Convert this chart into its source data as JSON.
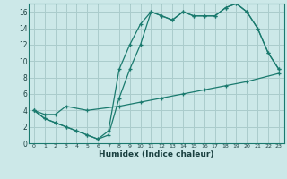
{
  "xlabel": "Humidex (Indice chaleur)",
  "ylabel": "",
  "bg_color": "#cce8e8",
  "grid_color": "#aacccc",
  "line_color": "#1a7a6e",
  "xlim": [
    -0.5,
    23.5
  ],
  "ylim": [
    0,
    17
  ],
  "xticks": [
    0,
    1,
    2,
    3,
    4,
    5,
    6,
    7,
    8,
    9,
    10,
    11,
    12,
    13,
    14,
    15,
    16,
    17,
    18,
    19,
    20,
    21,
    22,
    23
  ],
  "yticks": [
    0,
    2,
    4,
    6,
    8,
    10,
    12,
    14,
    16
  ],
  "line1_x": [
    0,
    1,
    2,
    3,
    4,
    5,
    6,
    7,
    8,
    9,
    10,
    11,
    12,
    13,
    14,
    15,
    16,
    17,
    18,
    19,
    20,
    21,
    22,
    23
  ],
  "line1_y": [
    4,
    3,
    2.5,
    2,
    1.5,
    1,
    0.5,
    1,
    5.5,
    9,
    12,
    16,
    15.5,
    15,
    16,
    15.5,
    15.5,
    15.5,
    16.5,
    17,
    16,
    14,
    11,
    9
  ],
  "line2_x": [
    0,
    1,
    2,
    3,
    4,
    5,
    6,
    7,
    8,
    9,
    10,
    11,
    12,
    13,
    14,
    15,
    16,
    17,
    18,
    19,
    20,
    21,
    22,
    23
  ],
  "line2_y": [
    4,
    3,
    2.5,
    2,
    1.5,
    1,
    0.5,
    1.5,
    9,
    12,
    14.5,
    16,
    15.5,
    15,
    16,
    15.5,
    15.5,
    15.5,
    16.5,
    17,
    16,
    14,
    11,
    9
  ],
  "line3_x": [
    0,
    1,
    2,
    3,
    5,
    8,
    10,
    12,
    14,
    16,
    18,
    20,
    23
  ],
  "line3_y": [
    4,
    3.5,
    3.5,
    4.5,
    4,
    4.5,
    5,
    5.5,
    6,
    6.5,
    7,
    7.5,
    8.5
  ]
}
